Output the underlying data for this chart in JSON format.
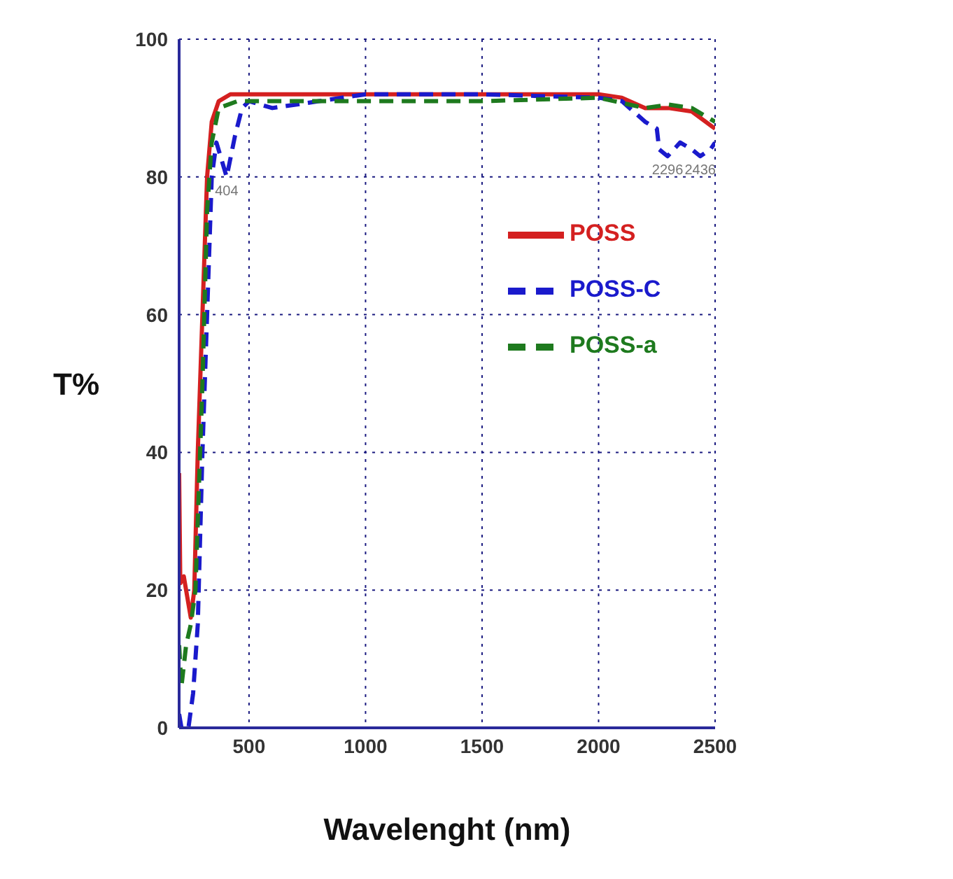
{
  "chart_data": {
    "type": "line",
    "xlabel": "Wavelenght (nm)",
    "ylabel": "T%",
    "xlim": [
      200,
      2500
    ],
    "xticks": [
      500,
      1000,
      1500,
      2000,
      2500
    ],
    "ylim": [
      0,
      100
    ],
    "yticks": [
      0,
      20,
      40,
      60,
      80,
      100
    ],
    "grid": true,
    "legend": "top right",
    "marker": "none",
    "series": [
      {
        "name": "POSS",
        "color": "#d42020",
        "line_style": "solid",
        "x": [
          200,
          205,
          220,
          235,
          250,
          265,
          280,
          300,
          320,
          340,
          370,
          420,
          600,
          800,
          1000,
          1200,
          1500,
          1800,
          2000,
          2100,
          2200,
          2300,
          2400,
          2500
        ],
        "values": [
          37,
          21,
          22,
          19,
          16,
          20,
          40,
          60,
          80,
          88,
          91,
          92,
          92,
          92,
          92,
          92,
          92,
          92,
          92,
          91.5,
          90,
          90,
          89.5,
          87
        ]
      },
      {
        "name": "POSS-C",
        "color": "#1a1acc",
        "line_style": "dashed",
        "x": [
          200,
          210,
          240,
          260,
          280,
          300,
          320,
          340,
          360,
          404,
          440,
          470,
          500,
          600,
          800,
          1000,
          1500,
          2000,
          2100,
          2200,
          2250,
          2260,
          2296,
          2350,
          2400,
          2436,
          2480,
          2500
        ],
        "values": [
          2,
          0,
          0,
          5,
          15,
          40,
          60,
          80,
          85,
          80,
          86,
          90,
          91,
          90,
          91,
          92,
          92,
          91.5,
          91,
          88,
          87,
          84,
          83,
          85,
          84,
          83,
          84,
          85
        ]
      },
      {
        "name": "POSS-a",
        "color": "#1e7a1e",
        "line_style": "dashed",
        "x": [
          200,
          210,
          230,
          250,
          270,
          300,
          320,
          340,
          370,
          450,
          600,
          1000,
          1500,
          2000,
          2200,
          2300,
          2400,
          2500
        ],
        "values": [
          12,
          6,
          12,
          15,
          20,
          50,
          75,
          85,
          90,
          91,
          91,
          91,
          91,
          91.5,
          90,
          90.5,
          90,
          88
        ]
      }
    ],
    "annotations": [
      {
        "text": "404",
        "x": 404,
        "y": 80
      },
      {
        "text": "2296",
        "x": 2296,
        "y": 83
      },
      {
        "text": "2436",
        "x": 2436,
        "y": 83
      }
    ]
  }
}
